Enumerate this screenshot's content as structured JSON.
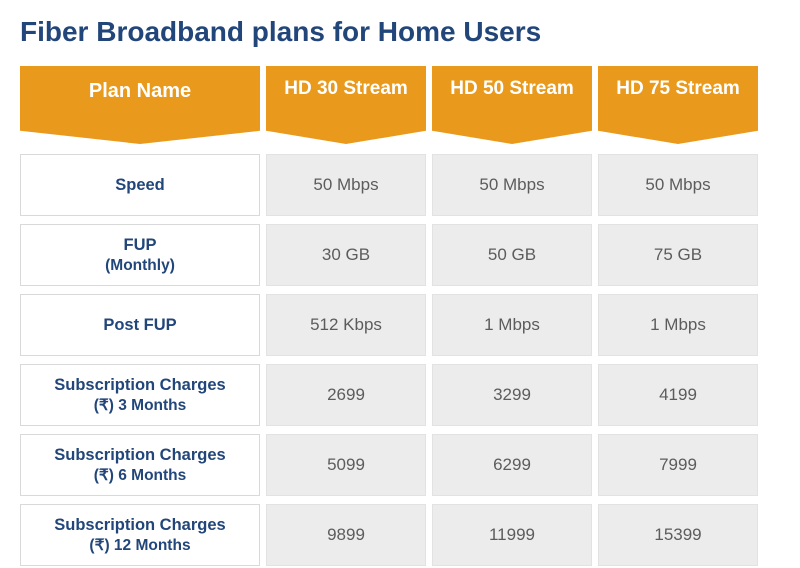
{
  "title": "Fiber Broadband plans for Home Users",
  "colors": {
    "title_text": "#22467a",
    "header_bg": "#e99a1d",
    "header_text": "#ffffff",
    "label_cell_bg": "#ffffff",
    "label_cell_text": "#22467a",
    "label_cell_border": "#d9d9d9",
    "value_cell_bg": "#ececec",
    "value_cell_text": "#5c5c5c",
    "value_cell_border": "#e2e2e2"
  },
  "table": {
    "header_label": "Plan Name",
    "plan_headers": [
      "HD 30 Stream",
      "HD 50 Stream",
      "HD 75 Stream"
    ],
    "rows": [
      {
        "label": "Speed",
        "sublabel": "",
        "values": [
          "50 Mbps",
          "50 Mbps",
          "50 Mbps"
        ]
      },
      {
        "label": "FUP",
        "sublabel": "(Monthly)",
        "values": [
          "30 GB",
          "50 GB",
          "75 GB"
        ]
      },
      {
        "label": "Post FUP",
        "sublabel": "",
        "values": [
          "512 Kbps",
          "1 Mbps",
          "1 Mbps"
        ]
      },
      {
        "label": "Subscription Charges",
        "sublabel": "(₹) 3 Months",
        "values": [
          "2699",
          "3299",
          "4199"
        ]
      },
      {
        "label": "Subscription Charges",
        "sublabel": "(₹) 6 Months",
        "values": [
          "5099",
          "6299",
          "7999"
        ]
      },
      {
        "label": "Subscription Charges",
        "sublabel": "(₹) 12 Months",
        "values": [
          "9899",
          "11999",
          "15399"
        ]
      }
    ]
  }
}
